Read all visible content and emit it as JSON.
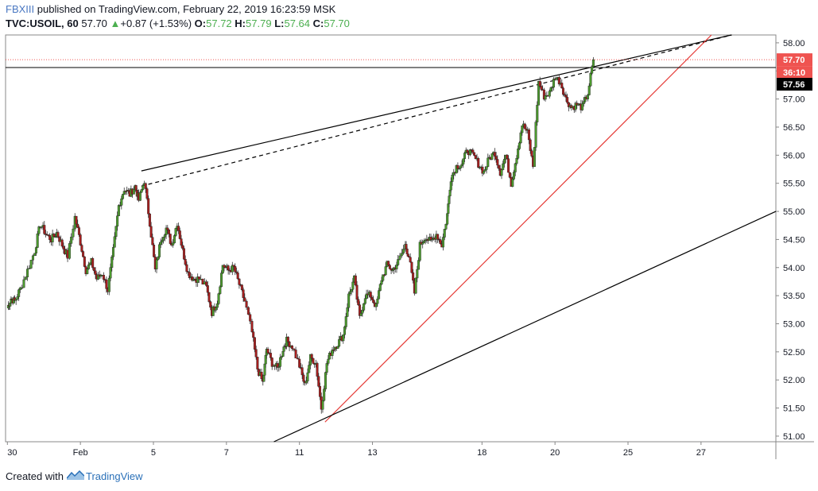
{
  "header": {
    "author": "FBXIII",
    "published_text": "published on TradingView.com, February 22, 2019 16:23:59 MSK",
    "symbol": "TVC:USOIL, 60",
    "last": "57.70",
    "change_arrow": "▲",
    "change": "+0.87 (+1.53%)",
    "o_label": "O:",
    "o_value": "57.72",
    "h_label": "H:",
    "h_value": "57.79",
    "l_label": "L:",
    "l_value": "57.64",
    "c_label": "C:",
    "c_value": "57.70"
  },
  "footer": {
    "created_with": "Created with",
    "brand": "TradingView"
  },
  "colors": {
    "bull": "#4c9a2e",
    "bear": "#a51f1f",
    "red_line": "#e53935",
    "last_price_tag": "#ef5350",
    "crosshair_tag": "#000000",
    "axis_text": "#131722"
  },
  "chart_data": {
    "type": "candlestick",
    "symbol": "TVC:USOIL",
    "interval": "60",
    "y_axis_ticks": [
      "51.00",
      "51.50",
      "52.00",
      "52.50",
      "53.00",
      "53.50",
      "54.00",
      "54.50",
      "55.00",
      "55.50",
      "56.00",
      "56.50",
      "57.00",
      "57.50",
      "58.00"
    ],
    "ylim": [
      50.9,
      58.14
    ],
    "x_axis_ticks": [
      {
        "label": "30",
        "t": 0
      },
      {
        "label": "Feb",
        "t": 2
      },
      {
        "label": "5",
        "t": 4
      },
      {
        "label": "7",
        "t": 6
      },
      {
        "label": "11",
        "t": 8
      },
      {
        "label": "13",
        "t": 10
      },
      {
        "label": "18",
        "t": 13
      },
      {
        "label": "20",
        "t": 15
      },
      {
        "label": "25",
        "t": 17
      },
      {
        "label": "27",
        "t": 19
      }
    ],
    "xlim": [
      -0.05,
      21.05
    ],
    "price_tags": {
      "last_price": "57.70",
      "countdown": "36:10",
      "crosshair_price": "57.56"
    },
    "crosshair_price": 57.56,
    "last_price": 57.7,
    "closes": [
      [
        0.0,
        53.28
      ],
      [
        0.1,
        53.45
      ],
      [
        0.2,
        53.4
      ],
      [
        0.35,
        53.62
      ],
      [
        0.55,
        53.95
      ],
      [
        0.75,
        54.3
      ],
      [
        0.9,
        54.78
      ],
      [
        1.05,
        54.6
      ],
      [
        1.2,
        54.5
      ],
      [
        1.35,
        54.62
      ],
      [
        1.5,
        54.4
      ],
      [
        1.65,
        54.2
      ],
      [
        1.85,
        54.9
      ],
      [
        2.0,
        54.45
      ],
      [
        2.15,
        53.95
      ],
      [
        2.3,
        54.1
      ],
      [
        2.45,
        53.8
      ],
      [
        2.6,
        53.9
      ],
      [
        2.75,
        53.6
      ],
      [
        2.9,
        54.3
      ],
      [
        3.05,
        55.1
      ],
      [
        3.2,
        55.4
      ],
      [
        3.35,
        55.3
      ],
      [
        3.5,
        55.45
      ],
      [
        3.6,
        55.2
      ],
      [
        3.75,
        55.55
      ],
      [
        3.9,
        54.8
      ],
      [
        4.05,
        53.95
      ],
      [
        4.2,
        54.5
      ],
      [
        4.35,
        54.7
      ],
      [
        4.5,
        54.4
      ],
      [
        4.65,
        54.8
      ],
      [
        4.8,
        54.3
      ],
      [
        4.95,
        53.9
      ],
      [
        5.1,
        53.8
      ],
      [
        5.25,
        53.8
      ],
      [
        5.45,
        53.65
      ],
      [
        5.6,
        53.2
      ],
      [
        5.75,
        53.4
      ],
      [
        5.9,
        54.05
      ],
      [
        6.05,
        53.95
      ],
      [
        6.2,
        54.0
      ],
      [
        6.35,
        53.7
      ],
      [
        6.5,
        53.4
      ],
      [
        6.7,
        52.85
      ],
      [
        6.85,
        52.2
      ],
      [
        7.0,
        51.95
      ],
      [
        7.1,
        52.55
      ],
      [
        7.25,
        52.3
      ],
      [
        7.4,
        52.2
      ],
      [
        7.55,
        52.55
      ],
      [
        7.65,
        52.7
      ],
      [
        7.8,
        52.6
      ],
      [
        8.0,
        52.25
      ],
      [
        8.15,
        51.9
      ],
      [
        8.3,
        52.4
      ],
      [
        8.45,
        52.3
      ],
      [
        8.6,
        51.5
      ],
      [
        8.75,
        52.3
      ],
      [
        8.9,
        52.55
      ],
      [
        9.05,
        52.65
      ],
      [
        9.2,
        52.8
      ],
      [
        9.35,
        53.5
      ],
      [
        9.5,
        53.8
      ],
      [
        9.65,
        53.1
      ],
      [
        9.8,
        53.5
      ],
      [
        9.95,
        53.5
      ],
      [
        10.1,
        53.3
      ],
      [
        10.25,
        53.8
      ],
      [
        10.4,
        54.05
      ],
      [
        10.55,
        53.95
      ],
      [
        10.7,
        54.1
      ],
      [
        10.9,
        54.4
      ],
      [
        11.0,
        54.2
      ],
      [
        11.15,
        53.55
      ],
      [
        11.3,
        54.4
      ],
      [
        11.45,
        54.55
      ],
      [
        11.6,
        54.45
      ],
      [
        11.75,
        54.6
      ],
      [
        11.9,
        54.4
      ],
      [
        12.05,
        54.95
      ],
      [
        12.15,
        55.6
      ],
      [
        12.3,
        55.8
      ],
      [
        12.45,
        55.85
      ],
      [
        12.6,
        56.1
      ],
      [
        12.75,
        56.0
      ],
      [
        12.9,
        55.85
      ],
      [
        13.05,
        55.7
      ],
      [
        13.2,
        55.95
      ],
      [
        13.35,
        56.05
      ],
      [
        13.5,
        55.7
      ],
      [
        13.65,
        56.0
      ],
      [
        13.8,
        55.5
      ],
      [
        13.95,
        56.0
      ],
      [
        14.1,
        56.55
      ],
      [
        14.25,
        56.4
      ],
      [
        14.4,
        55.8
      ],
      [
        14.55,
        57.3
      ],
      [
        14.7,
        57.05
      ],
      [
        14.85,
        57.1
      ],
      [
        15.0,
        57.4
      ],
      [
        15.15,
        57.3
      ],
      [
        15.3,
        57.0
      ],
      [
        15.45,
        56.85
      ],
      [
        15.6,
        56.9
      ],
      [
        15.75,
        56.85
      ],
      [
        15.9,
        57.1
      ],
      [
        16.05,
        57.7
      ]
    ],
    "trendlines": [
      {
        "name": "resistance-solid",
        "style": "solid",
        "color": "#000000",
        "from": [
          3.67,
          55.72
        ],
        "to": [
          19.9,
          58.15
        ]
      },
      {
        "name": "resistance-dashed",
        "style": "dashed",
        "color": "#000000",
        "from": [
          3.67,
          55.45
        ],
        "to": [
          19.9,
          58.15
        ]
      },
      {
        "name": "support-rising",
        "style": "solid",
        "color": "#e53935",
        "from": [
          8.7,
          51.25
        ],
        "to": [
          19.3,
          58.15
        ]
      },
      {
        "name": "channel-bottom",
        "style": "solid",
        "color": "#000000",
        "from": [
          7.3,
          50.9
        ],
        "to": [
          21.05,
          55.0
        ]
      }
    ]
  }
}
